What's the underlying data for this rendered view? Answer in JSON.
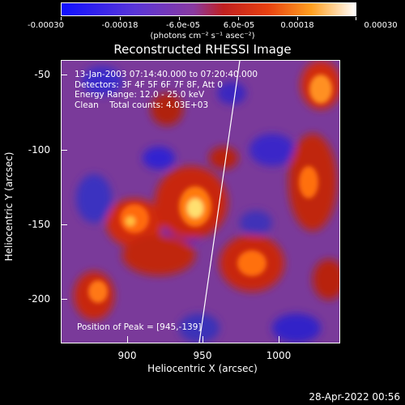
{
  "colorbar": {
    "labels": [
      "-0.00030",
      "-0.00018",
      "-6.0e-05",
      "6.0e-05",
      "0.00018",
      "0.00030"
    ],
    "units": "(photons cm⁻² s⁻¹ asec⁻²)"
  },
  "title": "Reconstructed RHESSI Image",
  "info": {
    "time": "13-Jan-2003 07:14:40.000 to 07:20:40.000",
    "detectors": "Detectors: 3F 4F 5F 6F 7F 8F, Att 0",
    "energy": "Energy Range: 12.0 - 25.0 keV",
    "clean": "Clean    Total counts: 4.03E+03"
  },
  "peak": "Position of Peak = [945,-139]",
  "axes": {
    "xlabel": "Heliocentric X (arcsec)",
    "ylabel": "Heliocentric Y (arcsec)",
    "xticks": [
      "900",
      "950",
      "1000"
    ],
    "yticks": [
      "-50",
      "-100",
      "-150",
      "-200"
    ]
  },
  "datestamp": "28-Apr-2022 00:56",
  "colors": {
    "negative": "#2030c0",
    "mid": "#7040a0",
    "positive": "#ffffa0"
  }
}
